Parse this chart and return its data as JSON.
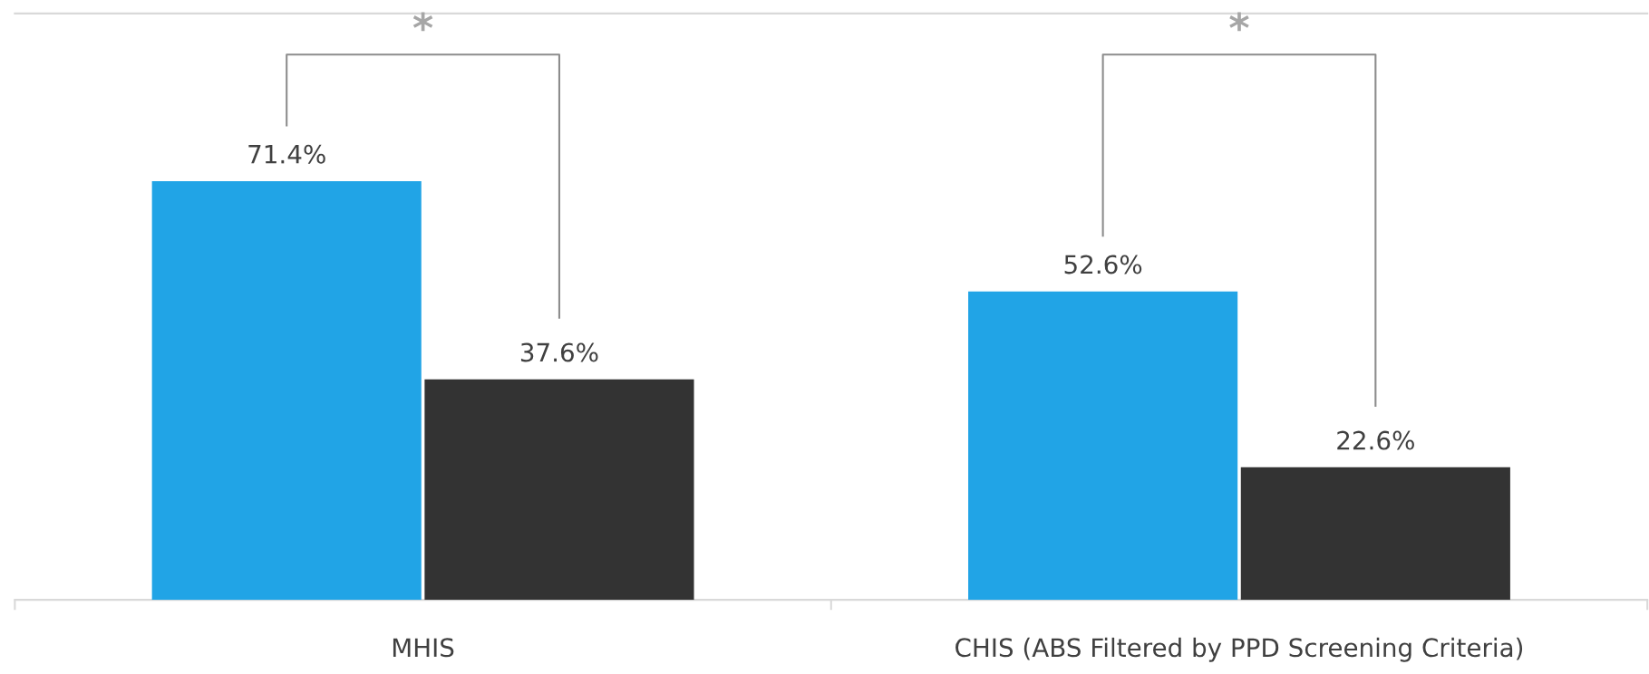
{
  "chart_data": {
    "type": "bar",
    "categories": [
      "MHIS",
      "CHIS (ABS Filtered by PPD Screening Criteria)"
    ],
    "series": [
      {
        "color": "#21a4e6",
        "values": [
          71.4,
          52.6
        ],
        "value_labels": [
          "71.4%",
          "52.6%"
        ]
      },
      {
        "color": "#333333",
        "values": [
          37.6,
          22.6
        ],
        "value_labels": [
          "37.6%",
          "22.6%"
        ]
      }
    ],
    "ylim": [
      0,
      100
    ],
    "tick_labels": "x",
    "annotations": [
      "*",
      "*"
    ]
  }
}
